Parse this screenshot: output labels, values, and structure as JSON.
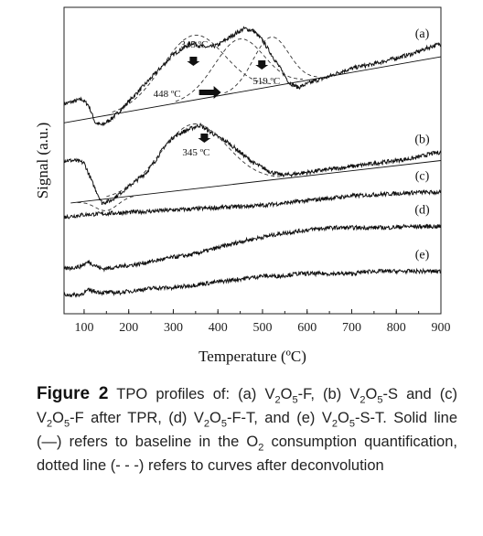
{
  "chart_data": {
    "type": "line",
    "xlabel": "Temperature (ºC)",
    "ylabel": "Signal (a.u.)",
    "xlim": [
      55,
      900
    ],
    "xticks": [
      100,
      200,
      300,
      400,
      500,
      600,
      700,
      800,
      900
    ],
    "y_tick_labels": "none",
    "grid": false,
    "series": [
      {
        "name": "(a)",
        "points": [
          [
            55,
            0.78
          ],
          [
            75,
            0.8
          ],
          [
            95,
            0.82
          ],
          [
            110,
            0.77
          ],
          [
            125,
            0.62
          ],
          [
            140,
            0.6
          ],
          [
            160,
            0.65
          ],
          [
            180,
            0.72
          ],
          [
            200,
            0.8
          ],
          [
            220,
            0.88
          ],
          [
            240,
            0.96
          ],
          [
            260,
            1.04
          ],
          [
            280,
            1.12
          ],
          [
            300,
            1.2
          ],
          [
            320,
            1.25
          ],
          [
            345,
            1.3
          ],
          [
            360,
            1.27
          ],
          [
            380,
            1.26
          ],
          [
            400,
            1.28
          ],
          [
            420,
            1.33
          ],
          [
            440,
            1.38
          ],
          [
            460,
            1.42
          ],
          [
            480,
            1.4
          ],
          [
            500,
            1.32
          ],
          [
            520,
            1.2
          ],
          [
            540,
            1.08
          ],
          [
            560,
            0.96
          ],
          [
            580,
            0.92
          ],
          [
            600,
            0.95
          ],
          [
            620,
            0.98
          ],
          [
            640,
            1.0
          ],
          [
            660,
            1.03
          ],
          [
            680,
            1.06
          ],
          [
            700,
            1.08
          ],
          [
            720,
            1.1
          ],
          [
            740,
            1.11
          ],
          [
            760,
            1.13
          ],
          [
            780,
            1.15
          ],
          [
            800,
            1.17
          ],
          [
            820,
            1.19
          ],
          [
            840,
            1.21
          ],
          [
            860,
            1.24
          ],
          [
            880,
            1.27
          ],
          [
            900,
            1.29
          ]
        ],
        "baseline": [
          [
            55,
            0.62
          ],
          [
            900,
            1.18
          ]
        ]
      },
      {
        "name": "(b)",
        "points": [
          [
            55,
            0.3
          ],
          [
            80,
            0.3
          ],
          [
            100,
            0.28
          ],
          [
            120,
            0.1
          ],
          [
            140,
            -0.06
          ],
          [
            160,
            -0.04
          ],
          [
            180,
            0.02
          ],
          [
            200,
            0.08
          ],
          [
            220,
            0.14
          ],
          [
            240,
            0.2
          ],
          [
            260,
            0.3
          ],
          [
            280,
            0.42
          ],
          [
            300,
            0.5
          ],
          [
            320,
            0.54
          ],
          [
            345,
            0.58
          ],
          [
            360,
            0.6
          ],
          [
            380,
            0.55
          ],
          [
            400,
            0.5
          ],
          [
            420,
            0.46
          ],
          [
            440,
            0.4
          ],
          [
            460,
            0.34
          ],
          [
            480,
            0.28
          ],
          [
            500,
            0.24
          ],
          [
            520,
            0.2
          ],
          [
            540,
            0.18
          ],
          [
            560,
            0.18
          ],
          [
            580,
            0.19
          ],
          [
            600,
            0.2
          ],
          [
            620,
            0.21
          ],
          [
            640,
            0.22
          ],
          [
            660,
            0.23
          ],
          [
            680,
            0.24
          ],
          [
            700,
            0.25
          ],
          [
            720,
            0.26
          ],
          [
            740,
            0.27
          ],
          [
            760,
            0.28
          ],
          [
            780,
            0.29
          ],
          [
            800,
            0.3
          ],
          [
            820,
            0.31
          ],
          [
            840,
            0.32
          ],
          [
            860,
            0.34
          ],
          [
            880,
            0.36
          ],
          [
            900,
            0.37
          ]
        ],
        "baseline": [
          [
            70,
            -0.06
          ],
          [
            900,
            0.3
          ]
        ]
      },
      {
        "name": "(c)",
        "points": [
          [
            55,
            -0.18
          ],
          [
            100,
            -0.16
          ],
          [
            150,
            -0.15
          ],
          [
            200,
            -0.14
          ],
          [
            250,
            -0.13
          ],
          [
            300,
            -0.12
          ],
          [
            350,
            -0.11
          ],
          [
            400,
            -0.1
          ],
          [
            450,
            -0.09
          ],
          [
            500,
            -0.08
          ],
          [
            550,
            -0.06
          ],
          [
            600,
            -0.04
          ],
          [
            650,
            -0.02
          ],
          [
            700,
            0.0
          ],
          [
            750,
            0.01
          ],
          [
            800,
            0.02
          ],
          [
            850,
            0.03
          ],
          [
            900,
            0.03
          ]
        ]
      },
      {
        "name": "(d)",
        "points": [
          [
            55,
            -0.62
          ],
          [
            90,
            -0.6
          ],
          [
            110,
            -0.56
          ],
          [
            140,
            -0.62
          ],
          [
            180,
            -0.6
          ],
          [
            220,
            -0.58
          ],
          [
            260,
            -0.55
          ],
          [
            300,
            -0.52
          ],
          [
            340,
            -0.5
          ],
          [
            380,
            -0.46
          ],
          [
            420,
            -0.42
          ],
          [
            460,
            -0.38
          ],
          [
            500,
            -0.35
          ],
          [
            540,
            -0.32
          ],
          [
            580,
            -0.3
          ],
          [
            620,
            -0.28
          ],
          [
            660,
            -0.27
          ],
          [
            700,
            -0.27
          ],
          [
            740,
            -0.27
          ],
          [
            780,
            -0.27
          ],
          [
            820,
            -0.26
          ],
          [
            860,
            -0.26
          ],
          [
            900,
            -0.26
          ]
        ]
      },
      {
        "name": "(e)",
        "points": [
          [
            55,
            -0.84
          ],
          [
            90,
            -0.84
          ],
          [
            110,
            -0.8
          ],
          [
            140,
            -0.82
          ],
          [
            180,
            -0.82
          ],
          [
            220,
            -0.8
          ],
          [
            260,
            -0.78
          ],
          [
            300,
            -0.78
          ],
          [
            340,
            -0.76
          ],
          [
            380,
            -0.74
          ],
          [
            420,
            -0.72
          ],
          [
            460,
            -0.7
          ],
          [
            500,
            -0.68
          ],
          [
            540,
            -0.68
          ],
          [
            580,
            -0.66
          ],
          [
            620,
            -0.66
          ],
          [
            660,
            -0.66
          ],
          [
            700,
            -0.66
          ],
          [
            740,
            -0.64
          ],
          [
            780,
            -0.64
          ],
          [
            820,
            -0.64
          ],
          [
            860,
            -0.64
          ],
          [
            900,
            -0.64
          ]
        ]
      }
    ],
    "annotations": [
      {
        "text": "345 ºC",
        "x": 345,
        "series": "(a)"
      },
      {
        "text": "519 ºC",
        "x": 519,
        "series": "(a)"
      },
      {
        "text": "448 ºC",
        "x": 448,
        "series": "(a)"
      },
      {
        "text": "345 ºC",
        "x": 345,
        "series": "(b)"
      }
    ]
  },
  "caption": {
    "label": "Figure 2",
    "text_html": " TPO profiles of: (a) V<sub>2</sub>O<sub>5</sub>-F, (b) V<sub>2</sub>O<sub>5</sub>-S and (c) V<sub>2</sub>O<sub>5</sub>-F after TPR, (d) V<sub>2</sub>O<sub>5</sub>-F-T, and (e) V<sub>2</sub>O<sub>5</sub>-S-T. Solid line (—) refers to baseline in the O<sub>2</sub> consumption quantification, dotted line (- - -) refers to curves after deconvolution"
  }
}
